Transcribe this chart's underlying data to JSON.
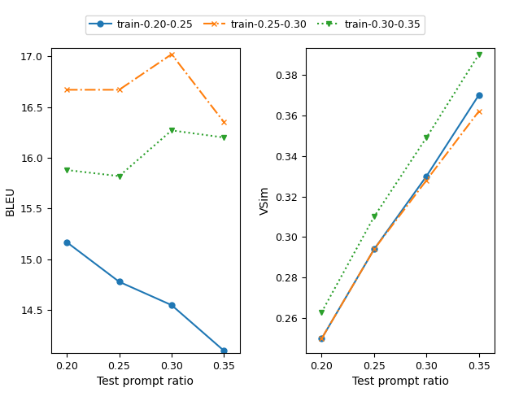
{
  "x": [
    0.2,
    0.25,
    0.3,
    0.35
  ],
  "bleu": {
    "train_0.20_0.25": [
      15.17,
      14.78,
      14.55,
      14.1
    ],
    "train_0.25_0.30": [
      16.67,
      16.67,
      17.02,
      16.35
    ],
    "train_0.30_0.35": [
      15.88,
      15.82,
      16.27,
      16.2
    ]
  },
  "vsim": {
    "train_0.20_0.25": [
      0.25,
      0.294,
      0.33,
      0.37
    ],
    "train_0.25_0.30": [
      0.25,
      0.294,
      0.328,
      0.362
    ],
    "train_0.30_0.35": [
      0.263,
      0.31,
      0.349,
      0.39
    ]
  },
  "legend_labels": [
    "train-0.20-0.25",
    "train-0.25-0.30",
    "train-0.30-0.35"
  ],
  "colors": [
    "#1f77b4",
    "#ff7f0e",
    "#2ca02c"
  ],
  "linestyles": [
    "-",
    "-.",
    ":"
  ],
  "markers": [
    "o",
    "x",
    "v"
  ],
  "ylabel_left": "BLEU",
  "ylabel_right": "VSim",
  "xlabel": "Test prompt ratio",
  "ylim_bleu": [
    14.08,
    17.08
  ],
  "ylim_vsim": [
    0.243,
    0.393
  ],
  "yticks_bleu": [
    14.5,
    15.0,
    15.5,
    16.0,
    16.5,
    17.0
  ],
  "yticks_vsim": [
    0.26,
    0.28,
    0.3,
    0.32,
    0.34,
    0.36,
    0.38
  ],
  "xlim": [
    0.185,
    0.365
  ]
}
